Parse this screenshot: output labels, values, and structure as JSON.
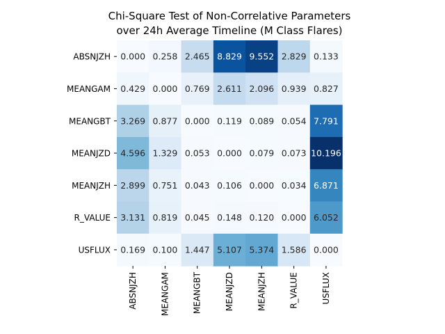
{
  "chart_data": {
    "type": "heatmap",
    "title": [
      "Chi-Square Test of Non-Correlative Parameters",
      "over 24h Average Timeline (M Class Flares)"
    ],
    "x_categories": [
      "ABSNJZH",
      "MEANGAM",
      "MEANGBT",
      "MEANJZD",
      "MEANJZH",
      "R_VALUE",
      "USFLUX"
    ],
    "y_categories": [
      "ABSNJZH",
      "MEANGAM",
      "MEANGBT",
      "MEANJZD",
      "MEANJZH",
      "R_VALUE",
      "USFLUX"
    ],
    "values": [
      [
        0.0,
        0.258,
        2.465,
        8.829,
        9.552,
        2.829,
        0.133
      ],
      [
        0.429,
        0.0,
        0.769,
        2.611,
        2.096,
        0.939,
        0.827
      ],
      [
        3.269,
        0.877,
        0.0,
        0.119,
        0.089,
        0.054,
        7.791
      ],
      [
        4.596,
        1.329,
        0.053,
        0.0,
        0.079,
        0.073,
        10.196
      ],
      [
        2.899,
        0.751,
        0.043,
        0.106,
        0.0,
        0.034,
        6.871
      ],
      [
        3.131,
        0.819,
        0.045,
        0.148,
        0.12,
        0.0,
        6.052
      ],
      [
        0.169,
        0.1,
        1.447,
        5.107,
        5.374,
        1.586,
        0.0
      ]
    ],
    "colormap": "Blues",
    "value_range": [
      0,
      10.196
    ],
    "annotation_format": "3 decimals",
    "colorbar": false
  }
}
